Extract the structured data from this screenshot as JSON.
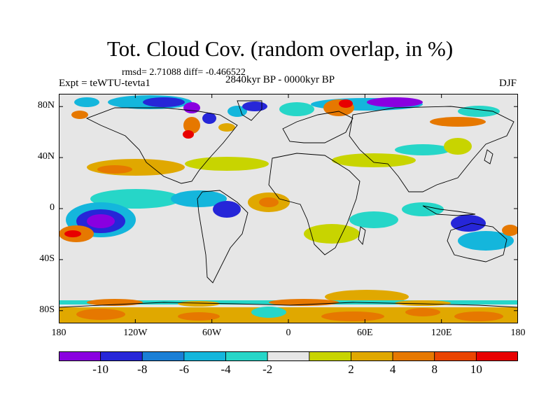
{
  "title": "Tot. Cloud Cov. (random overlap, in %)",
  "stats_line": "rmsd= 2.71088 diff= -0.466522",
  "experiment": "Expt = teWTU-tevta1",
  "period": "2840kyr BP - 0000kyr BP",
  "season": "DJF",
  "map": {
    "projection": "cylindrical equidistant",
    "lon_range": [
      -180,
      180
    ],
    "lat_range": [
      -90,
      90
    ],
    "background_color": "#e6e6e6",
    "lat_ticks": [
      {
        "lat": 80,
        "label": "80N"
      },
      {
        "lat": 40,
        "label": "40N"
      },
      {
        "lat": 0,
        "label": "0"
      },
      {
        "lat": -40,
        "label": "40S"
      },
      {
        "lat": -80,
        "label": "80S"
      }
    ],
    "lon_ticks": [
      {
        "lon": -180,
        "label": "180"
      },
      {
        "lon": -120,
        "label": "120W"
      },
      {
        "lon": -60,
        "label": "60W"
      },
      {
        "lon": 0,
        "label": "0"
      },
      {
        "lon": 60,
        "label": "60E"
      },
      {
        "lon": 120,
        "label": "120E"
      },
      {
        "lon": 180,
        "label": "180"
      }
    ]
  },
  "colorbar": {
    "colors": [
      "#8a00e0",
      "#2626d8",
      "#1a7fd6",
      "#14b6dc",
      "#26d6c8",
      "#e6e6e6",
      "#c8d400",
      "#e0a800",
      "#e67800",
      "#ea4400",
      "#e80000"
    ],
    "tick_labels": [
      "-10",
      "-8",
      "-6",
      "-4",
      "-2",
      "2",
      "4",
      "8",
      "10"
    ]
  }
}
